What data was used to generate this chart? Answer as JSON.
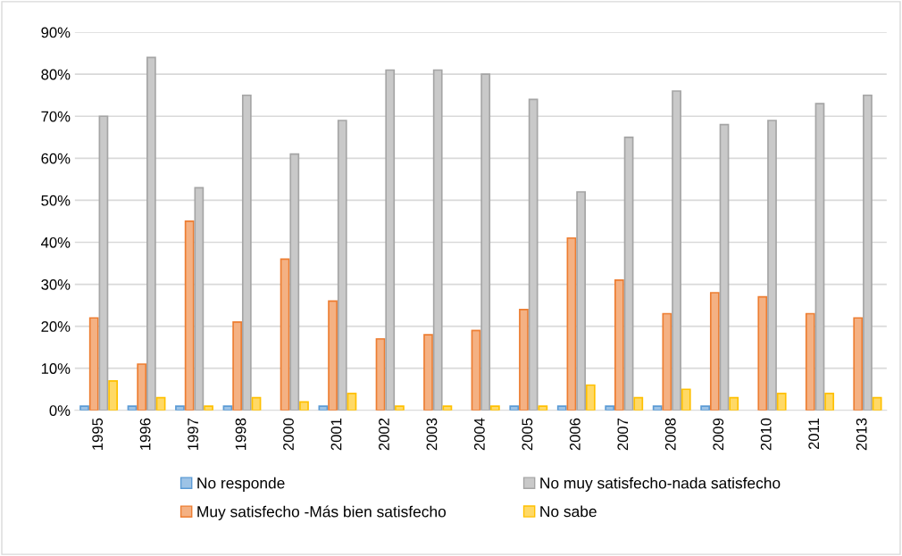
{
  "chart_data": {
    "type": "bar",
    "categories": [
      "1995",
      "1996",
      "1997",
      "1998",
      "2000",
      "2001",
      "2002",
      "2003",
      "2004",
      "2005",
      "2006",
      "2007",
      "2008",
      "2009",
      "2010",
      "2011",
      "2013"
    ],
    "series": [
      {
        "name": "No responde",
        "color": "#9dc3e6",
        "values": [
          1,
          1,
          1,
          1,
          null,
          1,
          null,
          null,
          null,
          1,
          1,
          1,
          1,
          1,
          null,
          null,
          null
        ]
      },
      {
        "name": "Muy satisfecho -Más bien satisfecho",
        "color": "#f4b183",
        "values": [
          22,
          11,
          45,
          21,
          36,
          26,
          17,
          18,
          19,
          24,
          41,
          31,
          23,
          28,
          27,
          23,
          22
        ]
      },
      {
        "name": "No muy satisfecho-nada satisfecho",
        "color": "#c9c9c9",
        "values": [
          70,
          84,
          53,
          75,
          61,
          69,
          81,
          81,
          80,
          74,
          52,
          65,
          76,
          68,
          69,
          73,
          75
        ]
      },
      {
        "name": "No sabe",
        "color": "#ffd966",
        "values": [
          7,
          3,
          1,
          3,
          2,
          4,
          1,
          1,
          1,
          1,
          6,
          3,
          5,
          3,
          4,
          4,
          3
        ]
      }
    ],
    "ylim": [
      0,
      90
    ],
    "yticks": [
      {
        "value": 0,
        "label": "0%"
      },
      {
        "value": 10,
        "label": "10%"
      },
      {
        "value": 20,
        "label": "20%"
      },
      {
        "value": 30,
        "label": "30%"
      },
      {
        "value": 40,
        "label": "40%"
      },
      {
        "value": 50,
        "label": "50%"
      },
      {
        "value": 60,
        "label": "60%"
      },
      {
        "value": 70,
        "label": "70%"
      },
      {
        "value": 80,
        "label": "80%"
      },
      {
        "value": 90,
        "label": "90%"
      }
    ],
    "grid": "y",
    "legend": "bottom"
  }
}
